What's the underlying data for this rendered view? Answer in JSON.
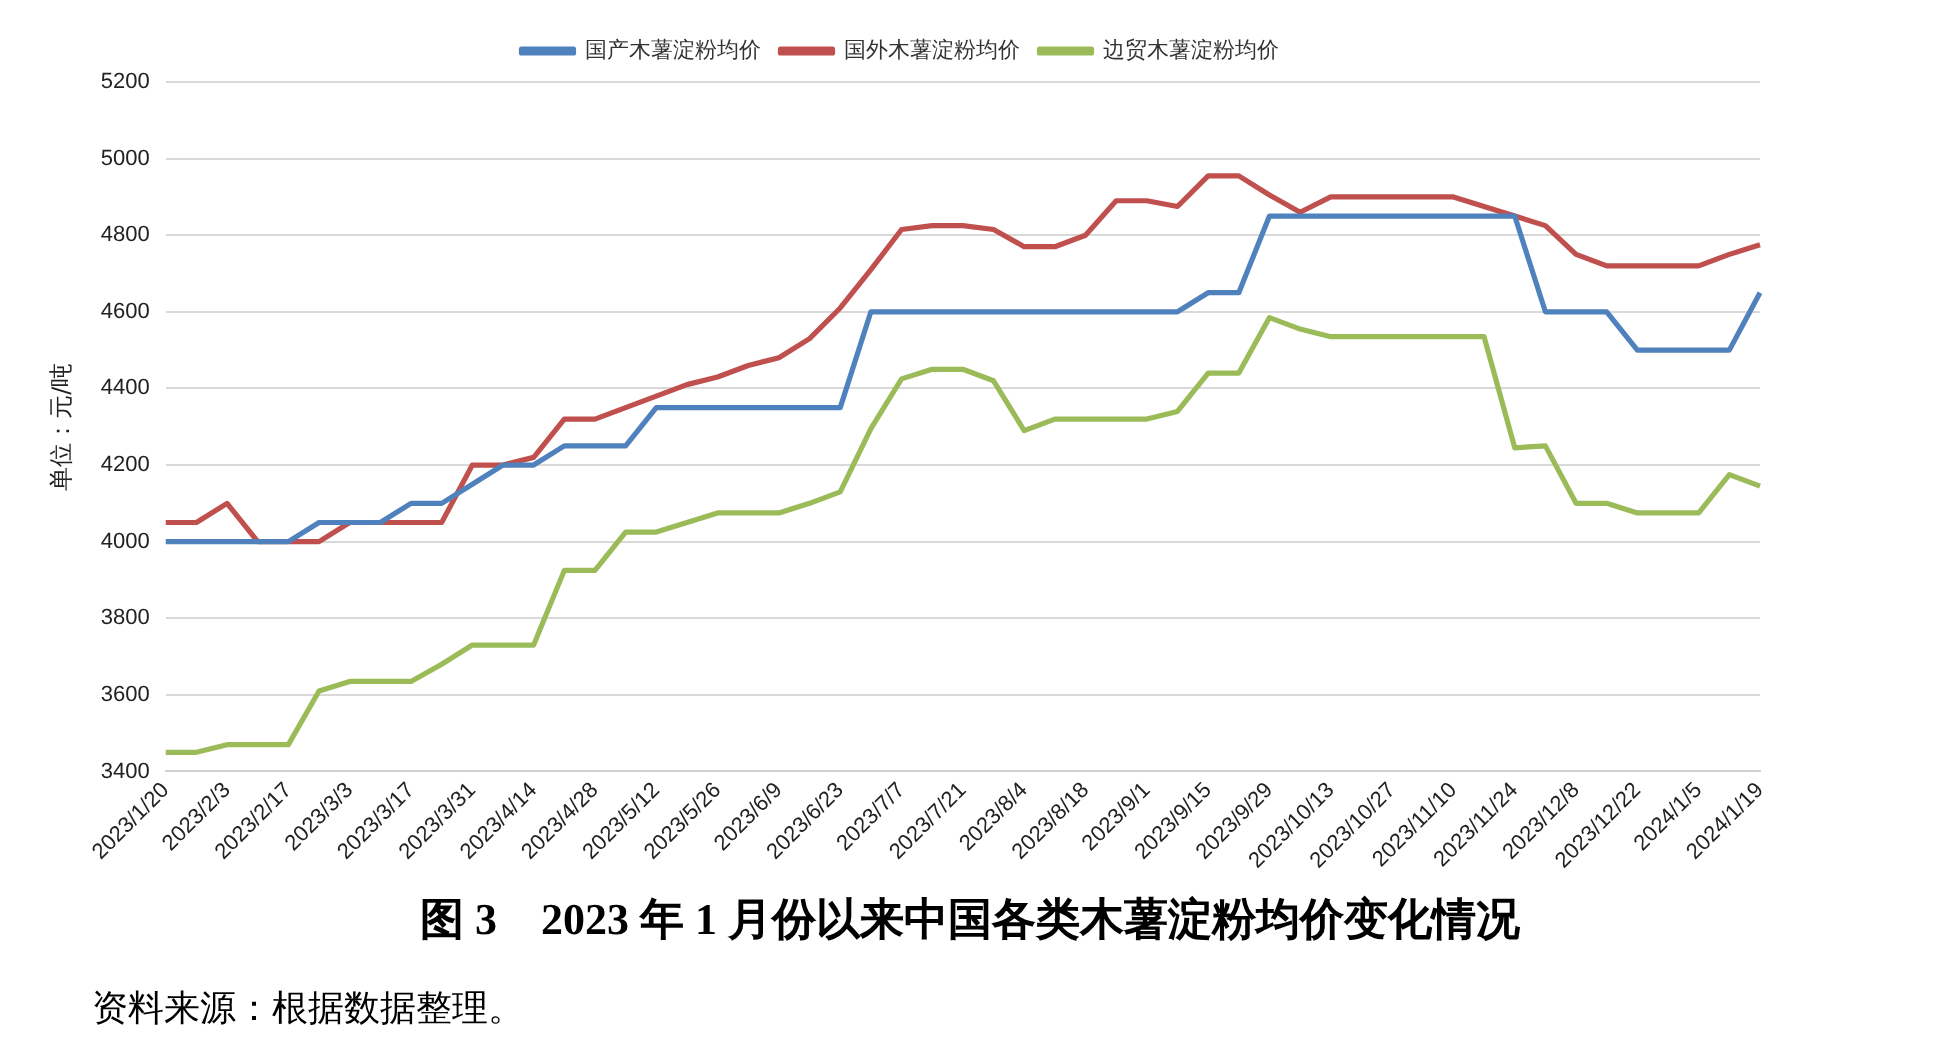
{
  "chart_data": {
    "type": "line",
    "title": "图 3　2023 年 1 月份以来中国各类木薯淀粉均价变化情况",
    "ylabel": "单位：元/吨",
    "annotations": [
      "资料来源：根据数据整理。"
    ],
    "categories": [
      "2023/1/20",
      null,
      "2023/2/3",
      null,
      "2023/2/17",
      null,
      "2023/3/3",
      null,
      "2023/3/17",
      null,
      "2023/3/31",
      null,
      "2023/4/14",
      null,
      "2023/4/28",
      null,
      "2023/5/12",
      null,
      "2023/5/26",
      null,
      "2023/6/9",
      null,
      "2023/6/23",
      null,
      "2023/7/7",
      null,
      "2023/7/21",
      null,
      "2023/8/4",
      null,
      "2023/8/18",
      null,
      "2023/9/1",
      null,
      "2023/9/15",
      null,
      "2023/9/29",
      null,
      "2023/10/13",
      null,
      "2023/10/27",
      null,
      "2023/11/10",
      null,
      "2023/11/24",
      null,
      "2023/12/8",
      null,
      "2023/12/22",
      null,
      "2024/1/5",
      null,
      "2024/1/19"
    ],
    "series": [
      {
        "name": "国产木薯淀粉均价",
        "color": "#4f81bd",
        "values": [
          4000,
          4000,
          4000,
          4000,
          4000,
          4050,
          4050,
          4050,
          4100,
          4100,
          4150,
          4200,
          4200,
          4250,
          4250,
          4250,
          4350,
          4350,
          4350,
          4350,
          4350,
          4350,
          4350,
          4600,
          4600,
          4600,
          4600,
          4600,
          4600,
          4600,
          4600,
          4600,
          4600,
          4600,
          4650,
          4650,
          4850,
          4850,
          4850,
          4850,
          4850,
          4850,
          4850,
          4850,
          4850,
          4600,
          4600,
          4600,
          4500,
          4500,
          4500,
          4500,
          4650
        ]
      },
      {
        "name": "国外木薯淀粉均价",
        "color": "#c0504d",
        "values": [
          4050,
          4050,
          4100,
          4000,
          4000,
          4000,
          4050,
          4050,
          4050,
          4050,
          4200,
          4200,
          4220,
          4320,
          4320,
          4350,
          4380,
          4410,
          4430,
          4460,
          4480,
          4530,
          4610,
          4710,
          4815,
          4825,
          4825,
          4815,
          4770,
          4770,
          4800,
          4890,
          4890,
          4875,
          4955,
          4955,
          4905,
          4860,
          4900,
          4900,
          4900,
          4900,
          4900,
          4875,
          4850,
          4825,
          4750,
          4720,
          4720,
          4720,
          4720,
          4750,
          4775
        ]
      },
      {
        "name": "边贸木薯淀粉均价",
        "color": "#9bbb59",
        "values": [
          3450,
          3450,
          3470,
          3470,
          3470,
          3610,
          3635,
          3635,
          3635,
          3680,
          3730,
          3730,
          3730,
          3925,
          3925,
          4025,
          4025,
          4050,
          4075,
          4075,
          4075,
          4100,
          4130,
          4295,
          4425,
          4450,
          4450,
          4420,
          4290,
          4320,
          4320,
          4320,
          4320,
          4340,
          4440,
          4440,
          4585,
          4555,
          4535,
          4535,
          4535,
          4535,
          4535,
          4535,
          4245,
          4250,
          4100,
          4100,
          4075,
          4075,
          4075,
          4175,
          4145
        ]
      }
    ],
    "ylim": [
      3400,
      5200
    ],
    "yticks": [
      3400,
      3600,
      3800,
      4000,
      4200,
      4400,
      4600,
      4800,
      5000,
      5200
    ],
    "grid": "y",
    "legend": "top",
    "marker": "none",
    "line_style": "solid"
  }
}
